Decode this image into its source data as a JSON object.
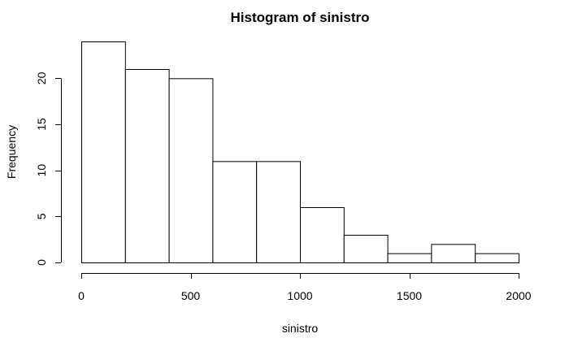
{
  "chart_data": {
    "type": "bar",
    "title": "Histogram of sinistro",
    "xlabel": "sinistro",
    "ylabel": "Frequency",
    "bins": [
      {
        "from": 0,
        "to": 200,
        "count": 24
      },
      {
        "from": 200,
        "to": 400,
        "count": 21
      },
      {
        "from": 400,
        "to": 600,
        "count": 20
      },
      {
        "from": 600,
        "to": 800,
        "count": 11
      },
      {
        "from": 800,
        "to": 1000,
        "count": 11
      },
      {
        "from": 1000,
        "to": 1200,
        "count": 6
      },
      {
        "from": 1200,
        "to": 1400,
        "count": 3
      },
      {
        "from": 1400,
        "to": 1600,
        "count": 1
      },
      {
        "from": 1600,
        "to": 1800,
        "count": 2
      },
      {
        "from": 1800,
        "to": 2000,
        "count": 1
      }
    ],
    "xlim": [
      0,
      2000
    ],
    "ylim": [
      0,
      24
    ],
    "x_ticks": [
      0,
      500,
      1000,
      1500,
      2000
    ],
    "x_tick_labels": [
      "0",
      "500",
      "1000",
      "1500",
      "2000"
    ],
    "y_ticks": [
      0,
      5,
      10,
      15,
      20
    ],
    "y_tick_labels": [
      "0",
      "5",
      "10",
      "15",
      "20"
    ],
    "grid": false,
    "legend": "none"
  }
}
